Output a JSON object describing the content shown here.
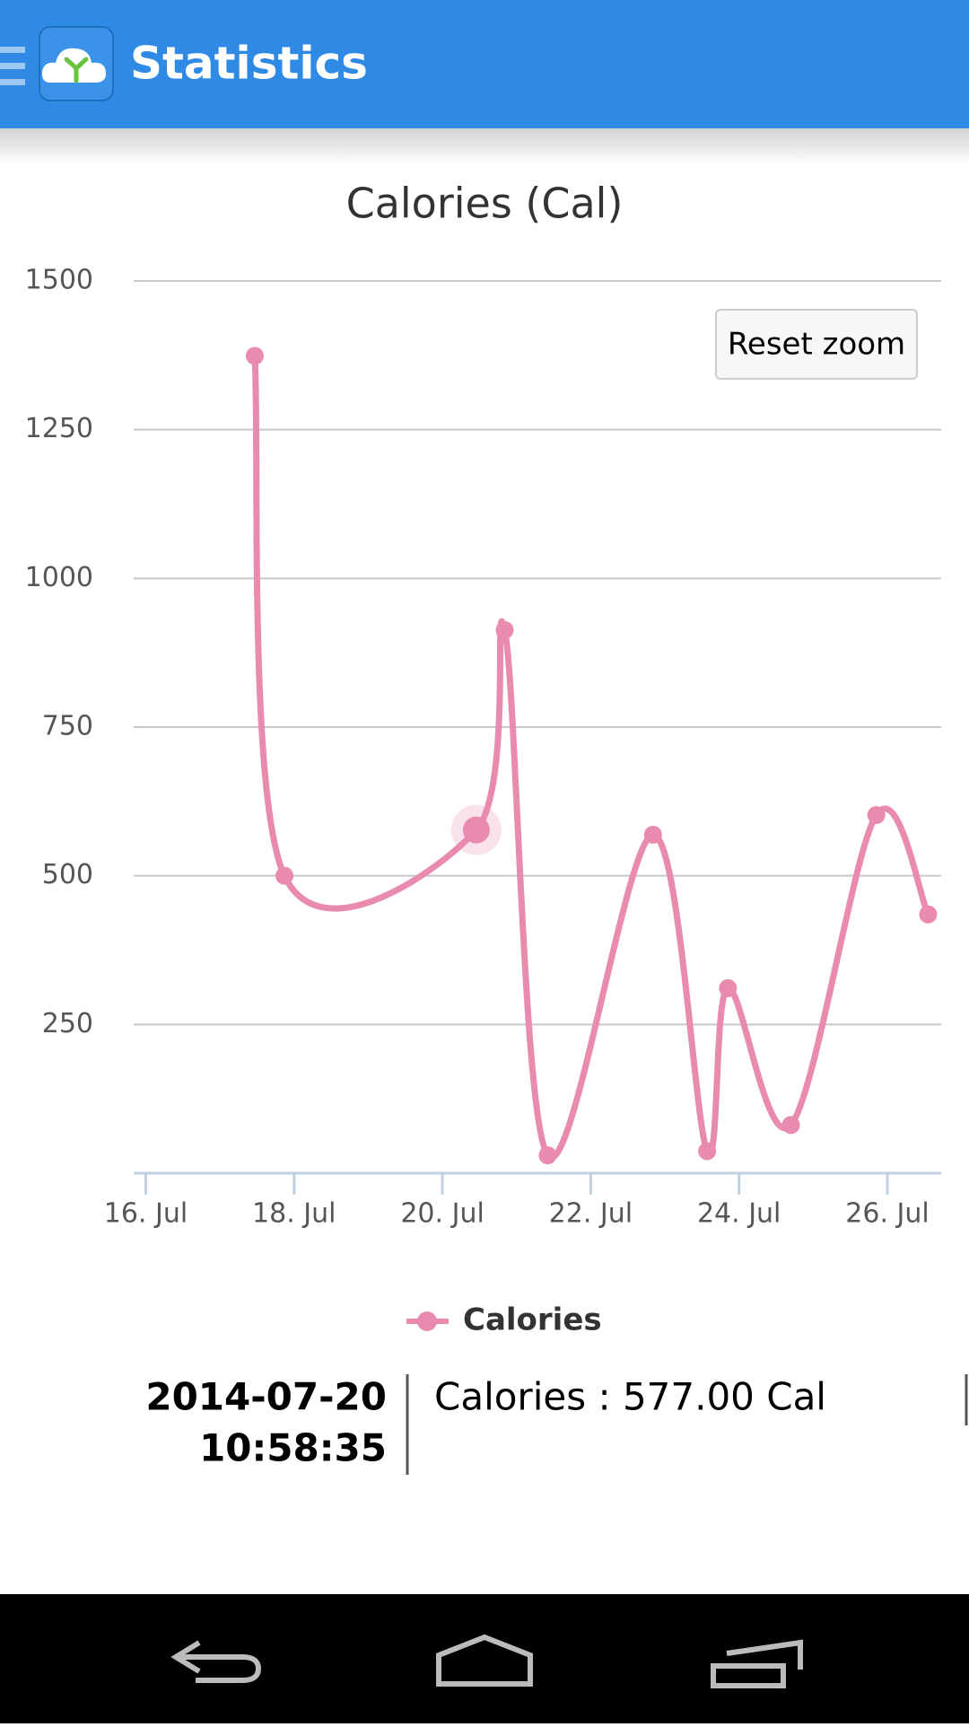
{
  "app_bar": {
    "title": "Statistics"
  },
  "chart_data": {
    "type": "line",
    "title": "Calories (Cal)",
    "x": [
      17.47,
      17.87,
      20.457,
      20.84,
      21.42,
      22.84,
      23.57,
      23.85,
      24.7,
      25.85,
      26.55
    ],
    "series": [
      {
        "name": "Calories",
        "color": "#e88bae",
        "values": [
          1374,
          500,
          577,
          913,
          30,
          569,
          37,
          311,
          81,
          602,
          435
        ]
      }
    ],
    "xlim": [
      15.837,
      26.726
    ],
    "xticks": [
      {
        "value": 16,
        "label": "16. Jul"
      },
      {
        "value": 18,
        "label": "18. Jul"
      },
      {
        "value": 20,
        "label": "20. Jul"
      },
      {
        "value": 22,
        "label": "22. Jul"
      },
      {
        "value": 24,
        "label": "24. Jul"
      },
      {
        "value": 26,
        "label": "26. Jul"
      }
    ],
    "ylim": [
      0,
      1500
    ],
    "yticks": [
      250,
      500,
      750,
      1000,
      1250,
      1500
    ],
    "grid": true,
    "selected_index": 2,
    "reset_button": "Reset zoom",
    "tooltip": {
      "date": "2014-07-20",
      "time": "10:58:35",
      "label": "Calories : 577.00 Cal"
    }
  }
}
